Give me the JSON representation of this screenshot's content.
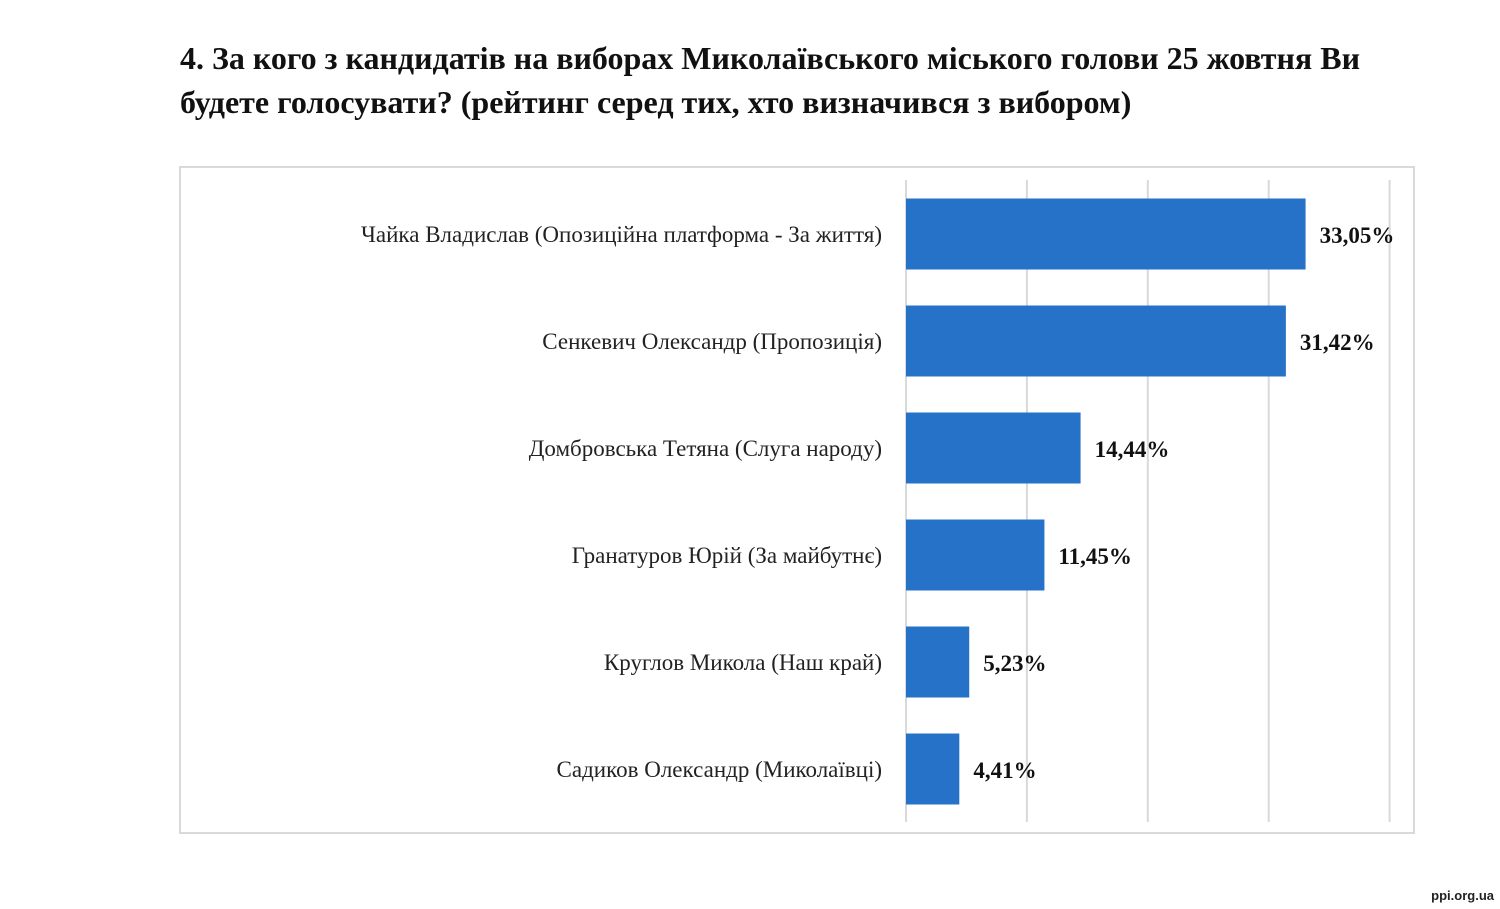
{
  "page": {
    "title": "4. За кого з кандидатів на виборах Миколаївського міського голови 25 жовтня Ви будете голосувати? (рейтинг серед тих, хто визначився з вибором)",
    "watermark": "ppi.org.ua"
  },
  "chart_data": {
    "type": "bar",
    "orientation": "horizontal",
    "categories": [
      "Чайка Владислав (Опозиційна платформа - За життя)",
      "Сенкевич Олександр (Пропозиція)",
      "Домбровська Тетяна (Слуга народу)",
      "Гранатуров Юрій (За майбутнє)",
      "Круглов Микола (Наш край)",
      "Садиков Олександр (Миколаївці)"
    ],
    "values": [
      33.05,
      31.42,
      14.44,
      11.45,
      5.23,
      4.41
    ],
    "value_labels": [
      "33,05%",
      "31,42%",
      "14,44%",
      "11,45%",
      "5,23%",
      "4,41%"
    ],
    "xlim": [
      0,
      40
    ],
    "grid": true,
    "bar_color": "#2672c9",
    "grid_color": "#d9d9d9"
  }
}
